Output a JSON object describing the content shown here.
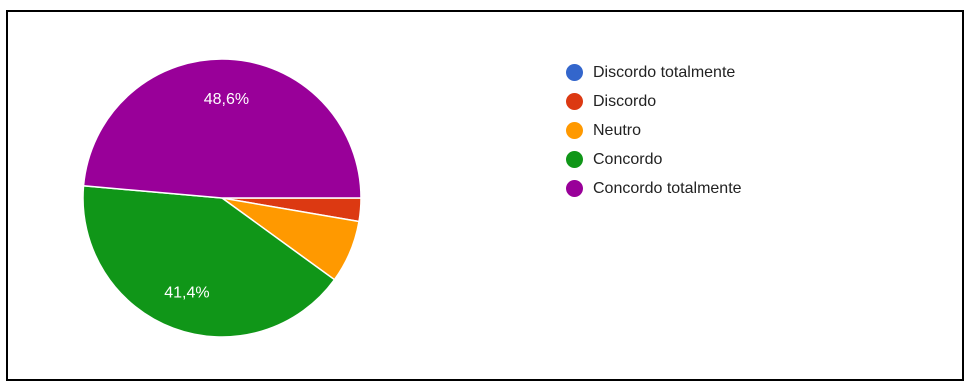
{
  "chart_data": {
    "type": "pie",
    "title": "",
    "legend_position": "right",
    "slices": [
      {
        "label": "Discordo totalmente",
        "value": 0.0,
        "color": "#3366cc",
        "data_label": ""
      },
      {
        "label": "Discordo",
        "value": 2.7,
        "color": "#dc3912",
        "data_label": ""
      },
      {
        "label": "Neutro",
        "value": 7.3,
        "color": "#ff9900",
        "data_label": ""
      },
      {
        "label": "Concordo",
        "value": 41.4,
        "color": "#109618",
        "data_label": "41,4%"
      },
      {
        "label": "Concordo totalmente",
        "value": 48.6,
        "color": "#990099",
        "data_label": "48,6%"
      }
    ]
  }
}
